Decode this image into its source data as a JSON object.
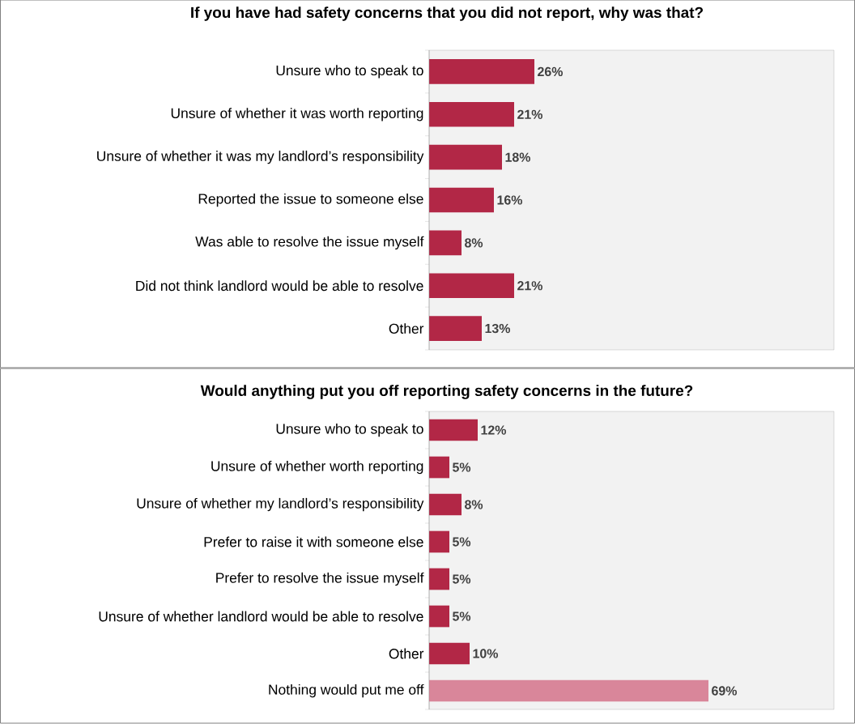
{
  "chart_data": [
    {
      "type": "bar",
      "orientation": "horizontal",
      "title": "If you have had safety concerns that you did not report, why was that?",
      "categories": [
        "Unsure who to speak to",
        "Unsure of whether it was worth reporting",
        "Unsure of whether it was my landlord’s responsibility",
        "Reported the issue to someone else",
        "Was able to resolve the issue myself",
        "Did not think landlord would be able to resolve",
        "Other"
      ],
      "values": [
        26,
        21,
        18,
        16,
        8,
        21,
        13
      ],
      "value_labels": [
        "26%",
        "21%",
        "18%",
        "16%",
        "8%",
        "21%",
        "13%"
      ],
      "color": "#b22746",
      "xlim": [
        0,
        100
      ],
      "tick_labels": "y"
    },
    {
      "type": "bar",
      "orientation": "horizontal",
      "title": "Would anything put you off reporting safety concerns in the future?",
      "categories": [
        "Unsure who to speak to",
        "Unsure of whether worth reporting",
        "Unsure of whether my landlord’s responsibility",
        "Prefer to raise it with someone else",
        "Prefer to resolve the issue myself",
        "Unsure of whether landlord would be able to resolve",
        "Other",
        "Nothing would put me off"
      ],
      "values": [
        12,
        5,
        8,
        5,
        5,
        5,
        10,
        69
      ],
      "value_labels": [
        "12%",
        "5%",
        "8%",
        "5%",
        "5%",
        "5%",
        "10%",
        "69%"
      ],
      "colors": [
        "#b22746",
        "#b22746",
        "#b22746",
        "#b22746",
        "#b22746",
        "#b22746",
        "#b22746",
        "#d9869a"
      ],
      "xlim": [
        0,
        100
      ],
      "tick_labels": "y"
    }
  ]
}
